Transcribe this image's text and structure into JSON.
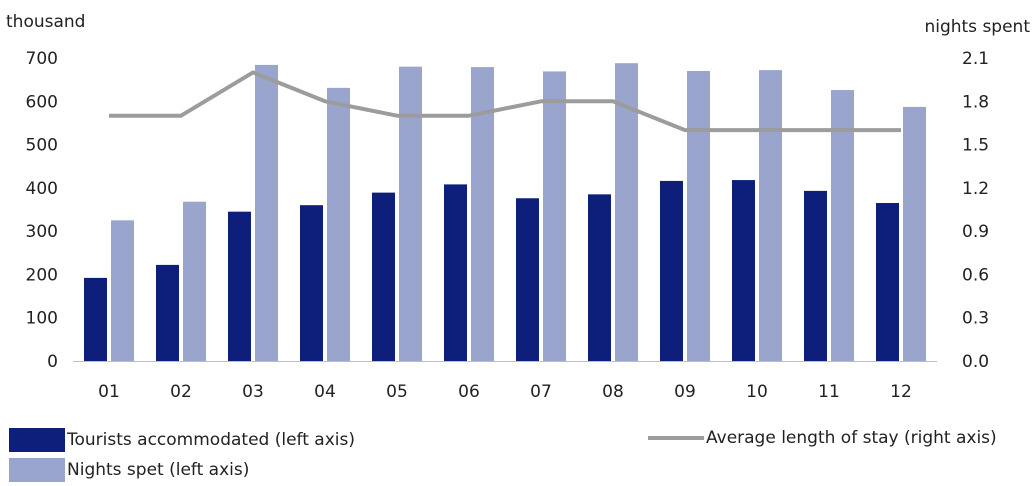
{
  "chart_data": {
    "type": "bar",
    "categories": [
      "01",
      "02",
      "03",
      "04",
      "05",
      "06",
      "07",
      "08",
      "09",
      "10",
      "11",
      "12"
    ],
    "series": [
      {
        "name": "Tourists accommodated (left axis)",
        "type": "bar",
        "axis": "left",
        "color": "#0d1f7a",
        "values": [
          192,
          222,
          345,
          360,
          389,
          408,
          376,
          385,
          416,
          418,
          393,
          365
        ]
      },
      {
        "name": "Nights spet (left axis)",
        "type": "bar",
        "axis": "left",
        "color": "#99a5cc",
        "values": [
          325,
          368,
          684,
          631,
          680,
          679,
          669,
          688,
          670,
          672,
          626,
          587
        ]
      },
      {
        "name": "Average length of stay (right axis)",
        "type": "line",
        "axis": "right",
        "color": "#9c9c9c",
        "values": [
          1.7,
          1.7,
          2.0,
          1.8,
          1.7,
          1.7,
          1.8,
          1.8,
          1.6,
          1.6,
          1.6,
          1.6
        ]
      }
    ],
    "left_axis": {
      "unit_label": "thousand",
      "range": [
        0,
        700
      ],
      "ticks": [
        0,
        100,
        200,
        300,
        400,
        500,
        600,
        700
      ],
      "tick_labels": [
        "0",
        "100",
        "200",
        "300",
        "400",
        "500",
        "600",
        "700"
      ]
    },
    "right_axis": {
      "unit_label": "nights spent",
      "range": [
        0,
        2.1
      ],
      "ticks": [
        0,
        0.3,
        0.6,
        0.9,
        1.2,
        1.5,
        1.8,
        2.1
      ],
      "tick_labels": [
        "0.0",
        "0.3",
        "0.6",
        "0.9",
        "1.2",
        "1.5",
        "1.8",
        "2.1"
      ]
    },
    "grid": false,
    "legend_position": "bottom"
  }
}
